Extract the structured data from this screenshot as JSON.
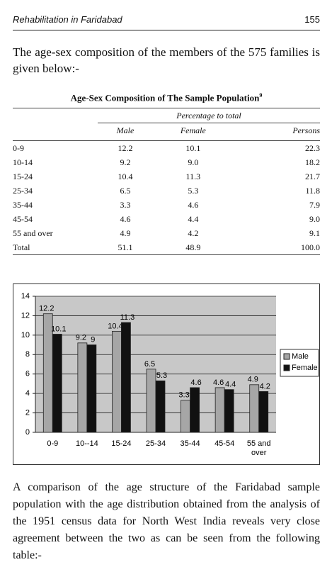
{
  "header": {
    "title": "Rehabilitation in Faridabad",
    "page": "155"
  },
  "intro": "The age-sex composition of the members of the 575 families is given below:-",
  "table": {
    "title": "Age-Sex Composition of The Sample Population",
    "footnote_ref": "9",
    "group_header": "Percentage to total",
    "columns": [
      "Male",
      "Female",
      "Persons"
    ],
    "rows": [
      [
        "0-9",
        "12.2",
        "10.1",
        "22.3"
      ],
      [
        "10-14",
        "9.2",
        "9.0",
        "18.2"
      ],
      [
        "15-24",
        "10.4",
        "11.3",
        "21.7"
      ],
      [
        "25-34",
        "6.5",
        "5.3",
        "11.8"
      ],
      [
        "35-44",
        "3.3",
        "4.6",
        "7.9"
      ],
      [
        "45-54",
        "4.6",
        "4.4",
        "9.0"
      ],
      [
        "55 and over",
        "4.9",
        "4.2",
        "9.1"
      ],
      [
        "Total",
        "51.1",
        "48.9",
        "100.0"
      ]
    ]
  },
  "chart_data": {
    "type": "bar",
    "categories": [
      "0-9",
      "10--14",
      "15-24",
      "25-34",
      "35-44",
      "45-54",
      "55 and over"
    ],
    "series": [
      {
        "name": "Male",
        "color": "#a6a6a6",
        "values": [
          12.2,
          9.2,
          10.4,
          6.5,
          3.3,
          4.6,
          4.9
        ]
      },
      {
        "name": "Female",
        "color": "#111111",
        "values": [
          10.1,
          9,
          11.3,
          5.3,
          4.6,
          4.4,
          4.2
        ]
      }
    ],
    "ylim": [
      0,
      14
    ],
    "yticks": [
      0,
      2,
      4,
      6,
      8,
      10,
      12,
      14
    ],
    "grid": true,
    "legend": "right"
  },
  "closing": "A comparison of the age structure of the Faridabad sample population with the age distribution obtained from the analysis of the 1951 census data for North West India reveals very close agreement between the two as can be seen from the following table:-"
}
